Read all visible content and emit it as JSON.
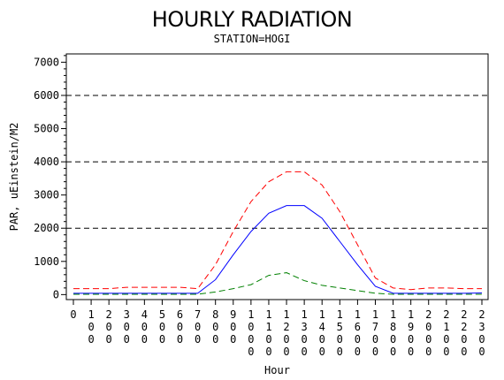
{
  "chart_data": {
    "type": "line",
    "title": "HOURLY RADIATION",
    "subtitle": "STATION=HOGI",
    "xlabel": "Hour",
    "ylabel": "PAR, uEinstein/M2",
    "x_tick_labels": [
      "0",
      "100",
      "200",
      "300",
      "400",
      "500",
      "600",
      "700",
      "800",
      "900",
      "1000",
      "1100",
      "1200",
      "1300",
      "1400",
      "1500",
      "1600",
      "1700",
      "1800",
      "1900",
      "2000",
      "2100",
      "2200",
      "2300"
    ],
    "x": [
      0,
      100,
      200,
      300,
      400,
      500,
      600,
      700,
      800,
      900,
      1000,
      1100,
      1200,
      1300,
      1400,
      1500,
      1600,
      1700,
      1800,
      1900,
      2000,
      2100,
      2200,
      2300
    ],
    "xlim": [
      0,
      2300
    ],
    "ylim": [
      -150,
      7250
    ],
    "y_ticks": [
      0,
      1000,
      2000,
      3000,
      4000,
      5000,
      6000,
      7000
    ],
    "y_tick_labels": [
      "0",
      "1000",
      "2000",
      "3000",
      "4000",
      "5000",
      "6000",
      "7000"
    ],
    "reference_lines": [
      2000,
      4000,
      6000
    ],
    "series": [
      {
        "color": "#ff0000",
        "dash": "dashed",
        "values": [
          180,
          180,
          180,
          220,
          220,
          220,
          220,
          180,
          900,
          1900,
          2800,
          3400,
          3700,
          3700,
          3300,
          2500,
          1500,
          500,
          200,
          150,
          200,
          200,
          180,
          180
        ]
      },
      {
        "color": "#0000ff",
        "dash": "solid",
        "values": [
          40,
          40,
          40,
          40,
          40,
          40,
          40,
          40,
          450,
          1200,
          1900,
          2450,
          2680,
          2680,
          2300,
          1600,
          900,
          250,
          40,
          40,
          40,
          40,
          40,
          50
        ]
      },
      {
        "color": "#008000",
        "dash": "dashed",
        "values": [
          10,
          10,
          10,
          10,
          10,
          10,
          10,
          10,
          80,
          180,
          300,
          580,
          660,
          420,
          280,
          200,
          120,
          40,
          10,
          10,
          10,
          10,
          10,
          10
        ]
      }
    ]
  }
}
